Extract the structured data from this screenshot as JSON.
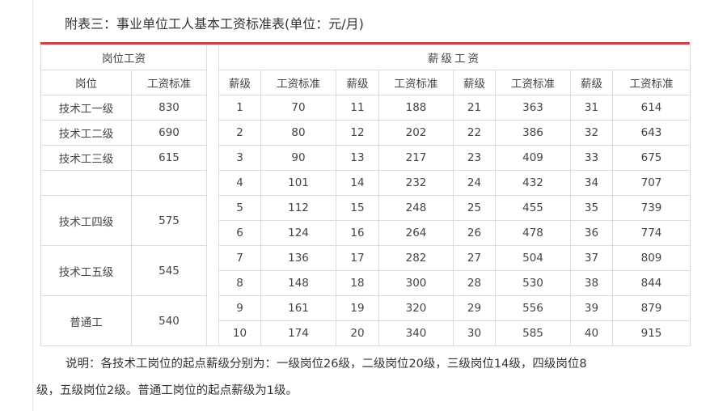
{
  "title": "附表三：事业单位工人基本工资标准表(单位：元/月)",
  "accent_color": "#c8454f",
  "headers": {
    "post_wage_group": "岗位工资",
    "grade_wage_group": "薪级工资",
    "post": "岗位",
    "wage_standard": "工资标准",
    "grade": "薪级"
  },
  "posts": [
    {
      "name": "技术工一级",
      "wage": "830",
      "rows": 1
    },
    {
      "name": "技术工二级",
      "wage": "690",
      "rows": 1
    },
    {
      "name": "技术工三级",
      "wage": "615",
      "rows": 1
    },
    {
      "name": "",
      "wage": "",
      "rows": 1
    },
    {
      "name": "技术工四级",
      "wage": "575",
      "rows": 2
    },
    {
      "name": "技术工五级",
      "wage": "545",
      "rows": 2
    },
    {
      "name": "普通工",
      "wage": "540",
      "rows": 2
    }
  ],
  "grades": [
    [
      [
        "1",
        "70"
      ],
      [
        "11",
        "188"
      ],
      [
        "21",
        "363"
      ],
      [
        "31",
        "614"
      ]
    ],
    [
      [
        "2",
        "80"
      ],
      [
        "12",
        "202"
      ],
      [
        "22",
        "386"
      ],
      [
        "32",
        "643"
      ]
    ],
    [
      [
        "3",
        "90"
      ],
      [
        "13",
        "217"
      ],
      [
        "23",
        "409"
      ],
      [
        "33",
        "675"
      ]
    ],
    [
      [
        "4",
        "101"
      ],
      [
        "14",
        "232"
      ],
      [
        "24",
        "432"
      ],
      [
        "34",
        "707"
      ]
    ],
    [
      [
        "5",
        "112"
      ],
      [
        "15",
        "248"
      ],
      [
        "25",
        "455"
      ],
      [
        "35",
        "739"
      ]
    ],
    [
      [
        "6",
        "124"
      ],
      [
        "16",
        "264"
      ],
      [
        "26",
        "478"
      ],
      [
        "36",
        "774"
      ]
    ],
    [
      [
        "7",
        "136"
      ],
      [
        "17",
        "282"
      ],
      [
        "27",
        "504"
      ],
      [
        "37",
        "809"
      ]
    ],
    [
      [
        "8",
        "148"
      ],
      [
        "18",
        "300"
      ],
      [
        "28",
        "530"
      ],
      [
        "38",
        "844"
      ]
    ],
    [
      [
        "9",
        "161"
      ],
      [
        "19",
        "320"
      ],
      [
        "29",
        "556"
      ],
      [
        "39",
        "879"
      ]
    ],
    [
      [
        "10",
        "174"
      ],
      [
        "20",
        "340"
      ],
      [
        "30",
        "585"
      ],
      [
        "40",
        "915"
      ]
    ]
  ],
  "note": {
    "line1": "说明：各技术工岗位的起点薪级分别为：一级岗位26级，二级岗位20级，三级岗位14级，四级岗位8",
    "line2": "级，五级岗位2级。普通工岗位的起点薪级为1级。"
  }
}
